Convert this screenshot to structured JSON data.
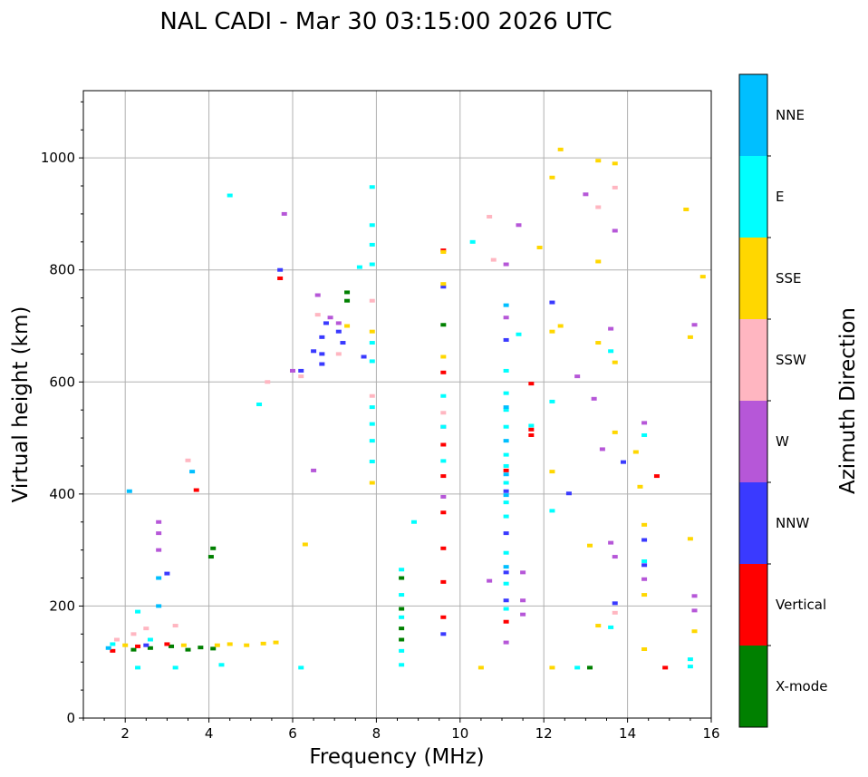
{
  "chart_data": {
    "type": "scatter",
    "title": "NAL CADI - Mar 30 03:15:00 2026 UTC",
    "xlabel": "Frequency (MHz)",
    "ylabel": "Virtual height (km)",
    "xlim": [
      1,
      16
    ],
    "ylim": [
      0,
      1120
    ],
    "xticks": [
      2,
      4,
      6,
      8,
      10,
      12,
      14,
      16
    ],
    "yticks": [
      0,
      200,
      400,
      600,
      800,
      1000
    ],
    "grid": true,
    "colorbar": {
      "label": "Azimuth Direction",
      "categories": [
        {
          "name": "X-mode",
          "color": "#008000"
        },
        {
          "name": "Vertical",
          "color": "#ff0000"
        },
        {
          "name": "NNW",
          "color": "#3a3aff"
        },
        {
          "name": "W",
          "color": "#b657d8"
        },
        {
          "name": "SSW",
          "color": "#ffb6c1"
        },
        {
          "name": "SSE",
          "color": "#ffd700"
        },
        {
          "name": "E",
          "color": "#00ffff"
        },
        {
          "name": "NNE",
          "color": "#00bfff"
        }
      ]
    },
    "series": [
      {
        "name": "X-mode",
        "points": [
          [
            2.2,
            122
          ],
          [
            2.6,
            125
          ],
          [
            3.1,
            128
          ],
          [
            3.5,
            122
          ],
          [
            3.8,
            126
          ],
          [
            4.1,
            124
          ],
          [
            4.1,
            303
          ],
          [
            4.05,
            288
          ],
          [
            7.3,
            760
          ],
          [
            7.3,
            745
          ],
          [
            8.6,
            250
          ],
          [
            8.6,
            195
          ],
          [
            8.6,
            160
          ],
          [
            8.6,
            140
          ],
          [
            9.6,
            702
          ],
          [
            13.1,
            90
          ]
        ]
      },
      {
        "name": "Vertical",
        "points": [
          [
            1.7,
            120
          ],
          [
            2.3,
            128
          ],
          [
            3.0,
            132
          ],
          [
            3.7,
            407
          ],
          [
            5.7,
            785
          ],
          [
            9.6,
            835
          ],
          [
            9.6,
            617
          ],
          [
            9.6,
            488
          ],
          [
            9.6,
            432
          ],
          [
            9.6,
            367
          ],
          [
            9.6,
            303
          ],
          [
            9.6,
            243
          ],
          [
            9.6,
            180
          ],
          [
            11.1,
            172
          ],
          [
            11.1,
            442
          ],
          [
            11.7,
            505
          ],
          [
            11.7,
            515
          ],
          [
            11.7,
            597
          ],
          [
            14.7,
            432
          ],
          [
            14.9,
            90
          ]
        ]
      },
      {
        "name": "NNW",
        "points": [
          [
            2.5,
            130
          ],
          [
            3.0,
            258
          ],
          [
            5.7,
            800
          ],
          [
            6.2,
            620
          ],
          [
            6.5,
            655
          ],
          [
            6.7,
            680
          ],
          [
            6.7,
            650
          ],
          [
            6.7,
            632
          ],
          [
            6.8,
            705
          ],
          [
            7.1,
            690
          ],
          [
            7.2,
            670
          ],
          [
            7.7,
            645
          ],
          [
            9.6,
            770
          ],
          [
            9.6,
            150
          ],
          [
            11.1,
            405
          ],
          [
            11.1,
            330
          ],
          [
            11.1,
            260
          ],
          [
            11.1,
            210
          ],
          [
            11.1,
            675
          ],
          [
            12.2,
            742
          ],
          [
            12.6,
            401
          ],
          [
            13.7,
            205
          ],
          [
            13.9,
            457
          ],
          [
            14.4,
            318
          ],
          [
            14.4,
            273
          ]
        ]
      },
      {
        "name": "W",
        "points": [
          [
            2.8,
            350
          ],
          [
            2.8,
            330
          ],
          [
            2.8,
            300
          ],
          [
            5.8,
            900
          ],
          [
            6.0,
            620
          ],
          [
            6.5,
            442
          ],
          [
            6.6,
            755
          ],
          [
            6.9,
            715
          ],
          [
            7.1,
            705
          ],
          [
            9.6,
            520
          ],
          [
            9.6,
            395
          ],
          [
            10.7,
            245
          ],
          [
            11.1,
            810
          ],
          [
            11.1,
            715
          ],
          [
            11.1,
            135
          ],
          [
            11.4,
            880
          ],
          [
            11.5,
            260
          ],
          [
            11.5,
            210
          ],
          [
            11.5,
            185
          ],
          [
            12.8,
            610
          ],
          [
            13.0,
            935
          ],
          [
            13.2,
            570
          ],
          [
            13.4,
            480
          ],
          [
            13.6,
            695
          ],
          [
            13.6,
            313
          ],
          [
            13.7,
            288
          ],
          [
            13.7,
            870
          ],
          [
            14.4,
            527
          ],
          [
            14.4,
            248
          ],
          [
            15.6,
            702
          ],
          [
            15.6,
            218
          ],
          [
            15.6,
            192
          ]
        ]
      },
      {
        "name": "SSW",
        "points": [
          [
            1.8,
            140
          ],
          [
            2.2,
            150
          ],
          [
            2.5,
            160
          ],
          [
            3.2,
            165
          ],
          [
            3.5,
            460
          ],
          [
            5.4,
            600
          ],
          [
            6.2,
            610
          ],
          [
            6.6,
            720
          ],
          [
            7.1,
            650
          ],
          [
            7.9,
            745
          ],
          [
            7.9,
            575
          ],
          [
            9.6,
            545
          ],
          [
            10.7,
            895
          ],
          [
            10.8,
            818
          ],
          [
            13.3,
            912
          ],
          [
            13.7,
            947
          ],
          [
            13.7,
            188
          ]
        ]
      },
      {
        "name": "SSE",
        "points": [
          [
            2.0,
            130
          ],
          [
            3.4,
            130
          ],
          [
            4.2,
            130
          ],
          [
            4.5,
            132
          ],
          [
            4.9,
            130
          ],
          [
            5.3,
            133
          ],
          [
            5.6,
            135
          ],
          [
            6.3,
            310
          ],
          [
            7.3,
            700
          ],
          [
            7.9,
            690
          ],
          [
            7.9,
            420
          ],
          [
            9.6,
            645
          ],
          [
            9.6,
            832
          ],
          [
            9.6,
            775
          ],
          [
            10.5,
            90
          ],
          [
            11.9,
            840
          ],
          [
            12.2,
            965
          ],
          [
            12.2,
            690
          ],
          [
            12.2,
            440
          ],
          [
            12.2,
            90
          ],
          [
            12.4,
            1015
          ],
          [
            12.4,
            700
          ],
          [
            13.1,
            308
          ],
          [
            13.3,
            995
          ],
          [
            13.3,
            815
          ],
          [
            13.3,
            670
          ],
          [
            13.3,
            165
          ],
          [
            13.7,
            990
          ],
          [
            13.7,
            635
          ],
          [
            13.7,
            510
          ],
          [
            14.2,
            475
          ],
          [
            14.3,
            413
          ],
          [
            14.4,
            345
          ],
          [
            14.4,
            220
          ],
          [
            14.4,
            123
          ],
          [
            15.4,
            908
          ],
          [
            15.5,
            680
          ],
          [
            15.5,
            320
          ],
          [
            15.6,
            155
          ],
          [
            15.8,
            788
          ]
        ]
      },
      {
        "name": "E",
        "points": [
          [
            1.7,
            132
          ],
          [
            2.3,
            190
          ],
          [
            2.3,
            90
          ],
          [
            2.6,
            140
          ],
          [
            3.2,
            90
          ],
          [
            4.3,
            95
          ],
          [
            4.5,
            933
          ],
          [
            5.2,
            560
          ],
          [
            6.2,
            90
          ],
          [
            7.6,
            805
          ],
          [
            7.9,
            948
          ],
          [
            7.9,
            880
          ],
          [
            7.9,
            845
          ],
          [
            7.9,
            810
          ],
          [
            7.9,
            670
          ],
          [
            7.9,
            637
          ],
          [
            7.9,
            555
          ],
          [
            7.9,
            525
          ],
          [
            7.9,
            495
          ],
          [
            7.9,
            458
          ],
          [
            8.6,
            265
          ],
          [
            8.6,
            220
          ],
          [
            8.6,
            180
          ],
          [
            8.6,
            120
          ],
          [
            8.6,
            95
          ],
          [
            8.9,
            350
          ],
          [
            9.6,
            575
          ],
          [
            9.6,
            520
          ],
          [
            9.6,
            459
          ],
          [
            10.3,
            850
          ],
          [
            11.1,
            620
          ],
          [
            11.1,
            580
          ],
          [
            11.1,
            550
          ],
          [
            11.1,
            520
          ],
          [
            11.1,
            470
          ],
          [
            11.1,
            450
          ],
          [
            11.1,
            420
          ],
          [
            11.1,
            385
          ],
          [
            11.1,
            360
          ],
          [
            11.1,
            295
          ],
          [
            11.1,
            240
          ],
          [
            11.1,
            195
          ],
          [
            11.4,
            685
          ],
          [
            11.7,
            522
          ],
          [
            12.2,
            565
          ],
          [
            12.2,
            370
          ],
          [
            12.8,
            90
          ],
          [
            13.6,
            655
          ],
          [
            13.6,
            162
          ],
          [
            14.4,
            505
          ],
          [
            14.4,
            280
          ],
          [
            15.5,
            105
          ],
          [
            15.5,
            92
          ]
        ]
      },
      {
        "name": "NNE",
        "points": [
          [
            1.6,
            125
          ],
          [
            2.1,
            405
          ],
          [
            2.8,
            200
          ],
          [
            2.8,
            250
          ],
          [
            3.6,
            440
          ],
          [
            11.1,
            737
          ],
          [
            11.1,
            555
          ],
          [
            11.1,
            495
          ],
          [
            11.1,
            435
          ],
          [
            11.1,
            398
          ],
          [
            11.1,
            270
          ]
        ]
      }
    ]
  }
}
